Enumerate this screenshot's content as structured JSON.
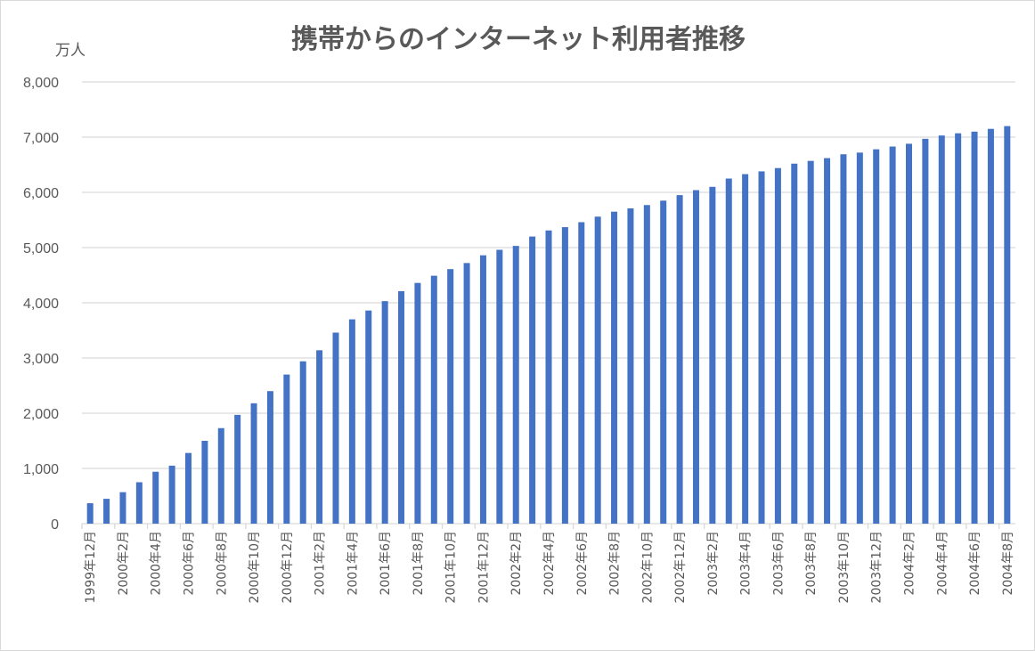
{
  "chart_data": {
    "type": "bar",
    "title": "携帯からのインターネット利用者推移",
    "ylabel": "万人",
    "xlabel": "",
    "ylim": [
      0,
      8000
    ],
    "yticks": [
      0,
      1000,
      2000,
      3000,
      4000,
      5000,
      6000,
      7000,
      8000
    ],
    "ytick_labels": [
      "0",
      "1,000",
      "2,000",
      "3,000",
      "4,000",
      "5,000",
      "6,000",
      "7,000",
      "8,000"
    ],
    "grid": true,
    "bar_color": "#4472c4",
    "categories": [
      "1999年12月",
      "2000年1月",
      "2000年2月",
      "2000年3月",
      "2000年4月",
      "2000年5月",
      "2000年6月",
      "2000年7月",
      "2000年8月",
      "2000年9月",
      "2000年10月",
      "2000年11月",
      "2000年12月",
      "2001年1月",
      "2001年2月",
      "2001年3月",
      "2001年4月",
      "2001年5月",
      "2001年6月",
      "2001年7月",
      "2001年8月",
      "2001年9月",
      "2001年10月",
      "2001年11月",
      "2001年12月",
      "2002年1月",
      "2002年2月",
      "2002年3月",
      "2002年4月",
      "2002年5月",
      "2002年6月",
      "2002年7月",
      "2002年8月",
      "2002年9月",
      "2002年10月",
      "2002年11月",
      "2002年12月",
      "2003年1月",
      "2003年2月",
      "2003年3月",
      "2003年4月",
      "2003年5月",
      "2003年6月",
      "2003年7月",
      "2003年8月",
      "2003年9月",
      "2003年10月",
      "2003年11月",
      "2003年12月",
      "2004年1月",
      "2004年2月",
      "2004年3月",
      "2004年4月",
      "2004年5月",
      "2004年6月",
      "2004年7月",
      "2004年8月"
    ],
    "values": [
      370,
      450,
      570,
      750,
      940,
      1050,
      1280,
      1500,
      1730,
      1970,
      2180,
      2400,
      2700,
      2940,
      3140,
      3460,
      3700,
      3860,
      4030,
      4210,
      4360,
      4490,
      4610,
      4720,
      4860,
      4960,
      5030,
      5200,
      5310,
      5370,
      5460,
      5560,
      5650,
      5710,
      5770,
      5850,
      5950,
      6040,
      6100,
      6250,
      6330,
      6380,
      6440,
      6520,
      6570,
      6620,
      6690,
      6720,
      6780,
      6830,
      6880,
      6970,
      7030,
      7070,
      7100,
      7150,
      7200
    ],
    "xtick_labels": [
      "1999年12月",
      "2000年2月",
      "2000年4月",
      "2000年6月",
      "2000年8月",
      "2000年10月",
      "2000年12月",
      "2001年2月",
      "2001年4月",
      "2001年6月",
      "2001年8月",
      "2001年10月",
      "2001年12月",
      "2002年2月",
      "2002年4月",
      "2002年6月",
      "2002年8月",
      "2002年10月",
      "2002年12月",
      "2003年2月",
      "2003年4月",
      "2003年6月",
      "2003年8月",
      "2003年10月",
      "2003年12月",
      "2004年2月",
      "2004年4月",
      "2004年6月",
      "2004年8月"
    ]
  }
}
